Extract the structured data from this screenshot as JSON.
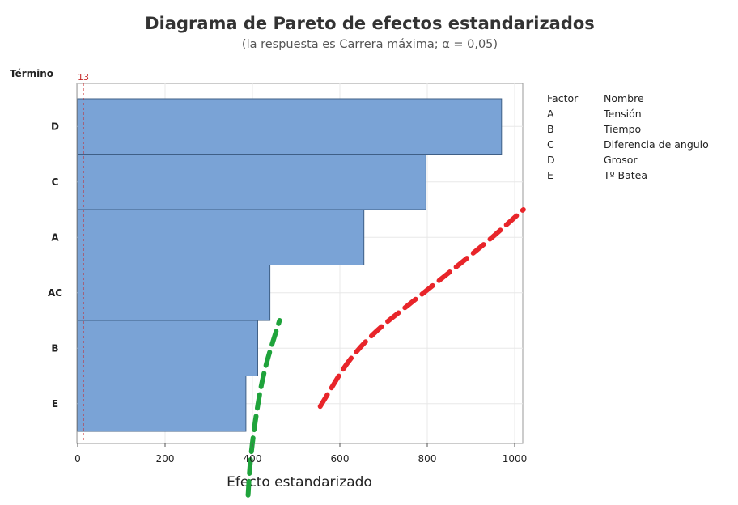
{
  "chart_data": {
    "type": "bar",
    "orientation": "horizontal",
    "title": "Diagrama de Pareto de efectos estandarizados",
    "subtitle": "(la respuesta es Carrera máxima; α = 0,05)",
    "ylabel": "Término",
    "xlabel": "Efecto estandarizado",
    "categories": [
      "D",
      "C",
      "A",
      "AC",
      "B",
      "E"
    ],
    "values": [
      970,
      797,
      655,
      440,
      412,
      385
    ],
    "xlim": [
      0,
      1025
    ],
    "xticks": [
      0,
      200,
      400,
      600,
      800,
      1000
    ],
    "grid": true,
    "bar_color": "#7aa3d6",
    "reference_line": {
      "value": 13,
      "label": "13",
      "color": "#c62828"
    },
    "legend": {
      "placement": "right",
      "header": {
        "factor": "Factor",
        "name": "Nombre"
      },
      "rows": [
        {
          "factor": "A",
          "name": "Tensión"
        },
        {
          "factor": "B",
          "name": "Tiempo"
        },
        {
          "factor": "C",
          "name": "Diferencia de angulo"
        },
        {
          "factor": "D",
          "name": "Grosor"
        },
        {
          "factor": "E",
          "name": "Tº Batea"
        }
      ]
    },
    "annotations": [
      {
        "type": "dashed-curve",
        "color": "#e8252a",
        "points": [
          [
            555,
            5.55
          ],
          [
            640,
            4.45
          ],
          [
            800,
            3.45
          ],
          [
            935,
            2.6
          ],
          [
            1020,
            2.0
          ]
        ]
      },
      {
        "type": "dashed-curve",
        "color": "#1fa33b",
        "points": [
          [
            390,
            7.15
          ],
          [
            395,
            6.5
          ],
          [
            410,
            5.6
          ],
          [
            428,
            4.85
          ],
          [
            462,
            4.0
          ]
        ]
      }
    ]
  }
}
